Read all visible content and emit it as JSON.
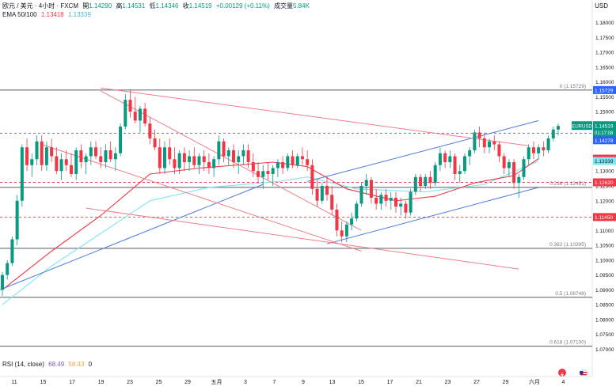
{
  "header": {
    "symbol_line": "欧元 / 美元 · 4小时 · FXCM",
    "ohlc": [
      {
        "label": "開",
        "value": "1.14290"
      },
      {
        "label": "高",
        "value": "1.14531"
      },
      {
        "label": "低",
        "value": "1.14346"
      },
      {
        "label": "收",
        "value": "1.14519"
      }
    ],
    "change": "+0.00129 (+0.11%)",
    "volume_label": "成交量",
    "volume": "5.84K",
    "ema_label": "EMA 50/100",
    "ema50_value": "1.13418",
    "ema100_value": "1.13339",
    "currency": "USD"
  },
  "rsi": {
    "label": "RSI (14, close)",
    "value1": "68.49",
    "value2": "58.43",
    "value3": "0"
  },
  "colors": {
    "up": "#089981",
    "down": "#f23645",
    "ema50": "#f23645",
    "ema100": "#7ee6f0",
    "channel": "#4d79e0",
    "wedge": "#ef7e8a",
    "fib": "#6a6d78",
    "price_tag_up": "#089981",
    "price_tag_blue": "#2962ff"
  },
  "chart_data": {
    "type": "candlestick",
    "symbol": "EURUSD",
    "interval": "4小时",
    "ylim": [
      1.0645,
      1.1855
    ],
    "y_ticks": [
      "1.18000",
      "1.17500",
      "1.17000",
      "1.16500",
      "1.16000",
      "1.15500",
      "1.15000",
      "1.14500",
      "1.14000",
      "1.13500",
      "1.13000",
      "1.12500",
      "1.12000",
      "1.11500",
      "1.11000",
      "1.10500",
      "1.10000",
      "1.09500",
      "1.09000",
      "1.08500",
      "1.08000",
      "1.07500",
      "1.07000"
    ],
    "x_ticks": [
      "11",
      "15",
      "17",
      "19",
      "23",
      "25",
      "29",
      "五月",
      "3",
      "7",
      "9",
      "13",
      "15",
      "17",
      "21",
      "23",
      "27",
      "29",
      "六月",
      "4"
    ],
    "candles": [
      [
        1.09,
        1.096,
        1.088,
        1.095
      ],
      [
        1.095,
        1.1,
        1.0935,
        1.099
      ],
      [
        1.099,
        1.108,
        1.098,
        1.107
      ],
      [
        1.107,
        1.122,
        1.105,
        1.12
      ],
      [
        1.12,
        1.139,
        1.118,
        1.138
      ],
      [
        1.138,
        1.141,
        1.13,
        1.132
      ],
      [
        1.132,
        1.136,
        1.128,
        1.134
      ],
      [
        1.134,
        1.142,
        1.132,
        1.14
      ],
      [
        1.14,
        1.142,
        1.13,
        1.132
      ],
      [
        1.132,
        1.14,
        1.13,
        1.138
      ],
      [
        1.138,
        1.141,
        1.133,
        1.135
      ],
      [
        1.135,
        1.138,
        1.129,
        1.13
      ],
      [
        1.13,
        1.136,
        1.127,
        1.134
      ],
      [
        1.134,
        1.137,
        1.13,
        1.132
      ],
      [
        1.132,
        1.136,
        1.128,
        1.129
      ],
      [
        1.129,
        1.138,
        1.127,
        1.137
      ],
      [
        1.137,
        1.139,
        1.131,
        1.133
      ],
      [
        1.133,
        1.136,
        1.129,
        1.135
      ],
      [
        1.135,
        1.14,
        1.132,
        1.138
      ],
      [
        1.138,
        1.14,
        1.134,
        1.135
      ],
      [
        1.135,
        1.138,
        1.131,
        1.133
      ],
      [
        1.133,
        1.139,
        1.131,
        1.137
      ],
      [
        1.137,
        1.14,
        1.133,
        1.134
      ],
      [
        1.134,
        1.138,
        1.13,
        1.136
      ],
      [
        1.136,
        1.146,
        1.135,
        1.145
      ],
      [
        1.145,
        1.156,
        1.144,
        1.154
      ],
      [
        1.154,
        1.1575,
        1.148,
        1.15
      ],
      [
        1.15,
        1.155,
        1.146,
        1.147
      ],
      [
        1.147,
        1.152,
        1.143,
        1.151
      ],
      [
        1.151,
        1.153,
        1.145,
        1.146
      ],
      [
        1.146,
        1.148,
        1.139,
        1.141
      ],
      [
        1.141,
        1.144,
        1.137,
        1.138
      ],
      [
        1.138,
        1.141,
        1.129,
        1.131
      ],
      [
        1.131,
        1.14,
        1.129,
        1.138
      ],
      [
        1.138,
        1.141,
        1.132,
        1.134
      ],
      [
        1.134,
        1.138,
        1.129,
        1.131
      ],
      [
        1.131,
        1.137,
        1.129,
        1.136
      ],
      [
        1.136,
        1.138,
        1.13,
        1.133
      ],
      [
        1.133,
        1.137,
        1.13,
        1.135
      ],
      [
        1.135,
        1.138,
        1.131,
        1.132
      ],
      [
        1.132,
        1.136,
        1.129,
        1.135
      ],
      [
        1.135,
        1.137,
        1.13,
        1.133
      ],
      [
        1.133,
        1.136,
        1.129,
        1.131
      ],
      [
        1.131,
        1.135,
        1.128,
        1.134
      ],
      [
        1.134,
        1.142,
        1.132,
        1.14
      ],
      [
        1.14,
        1.141,
        1.133,
        1.135
      ],
      [
        1.135,
        1.138,
        1.132,
        1.137
      ],
      [
        1.137,
        1.139,
        1.131,
        1.133
      ],
      [
        1.133,
        1.137,
        1.129,
        1.135
      ],
      [
        1.135,
        1.139,
        1.132,
        1.137
      ],
      [
        1.137,
        1.139,
        1.131,
        1.133
      ],
      [
        1.133,
        1.136,
        1.128,
        1.13
      ],
      [
        1.13,
        1.133,
        1.126,
        1.128
      ],
      [
        1.128,
        1.132,
        1.124,
        1.13
      ],
      [
        1.13,
        1.133,
        1.127,
        1.129
      ],
      [
        1.129,
        1.132,
        1.125,
        1.131
      ],
      [
        1.131,
        1.134,
        1.128,
        1.133
      ],
      [
        1.133,
        1.135,
        1.129,
        1.131
      ],
      [
        1.131,
        1.136,
        1.13,
        1.135
      ],
      [
        1.135,
        1.137,
        1.131,
        1.132
      ],
      [
        1.132,
        1.136,
        1.131,
        1.135
      ],
      [
        1.135,
        1.138,
        1.132,
        1.134
      ],
      [
        1.134,
        1.137,
        1.13,
        1.132
      ],
      [
        1.132,
        1.134,
        1.122,
        1.124
      ],
      [
        1.124,
        1.127,
        1.118,
        1.12
      ],
      [
        1.12,
        1.126,
        1.119,
        1.125
      ],
      [
        1.125,
        1.128,
        1.12,
        1.122
      ],
      [
        1.122,
        1.125,
        1.115,
        1.117
      ],
      [
        1.117,
        1.119,
        1.108,
        1.11
      ],
      [
        1.11,
        1.113,
        1.106,
        1.108
      ],
      [
        1.108,
        1.113,
        1.106,
        1.112
      ],
      [
        1.112,
        1.116,
        1.11,
        1.114
      ],
      [
        1.114,
        1.12,
        1.113,
        1.119
      ],
      [
        1.119,
        1.126,
        1.118,
        1.125
      ],
      [
        1.125,
        1.129,
        1.122,
        1.127
      ],
      [
        1.127,
        1.128,
        1.119,
        1.121
      ],
      [
        1.121,
        1.124,
        1.117,
        1.119
      ],
      [
        1.119,
        1.123,
        1.117,
        1.122
      ],
      [
        1.122,
        1.124,
        1.118,
        1.12
      ],
      [
        1.12,
        1.123,
        1.117,
        1.121
      ],
      [
        1.121,
        1.123,
        1.116,
        1.118
      ],
      [
        1.118,
        1.121,
        1.115,
        1.119
      ],
      [
        1.119,
        1.12,
        1.114,
        1.116
      ],
      [
        1.116,
        1.124,
        1.115,
        1.123
      ],
      [
        1.123,
        1.129,
        1.122,
        1.128
      ],
      [
        1.128,
        1.129,
        1.123,
        1.125
      ],
      [
        1.125,
        1.129,
        1.124,
        1.128
      ],
      [
        1.128,
        1.13,
        1.124,
        1.126
      ],
      [
        1.126,
        1.133,
        1.125,
        1.132
      ],
      [
        1.132,
        1.138,
        1.13,
        1.136
      ],
      [
        1.136,
        1.137,
        1.131,
        1.133
      ],
      [
        1.133,
        1.137,
        1.131,
        1.135
      ],
      [
        1.135,
        1.136,
        1.127,
        1.129
      ],
      [
        1.129,
        1.132,
        1.126,
        1.13
      ],
      [
        1.13,
        1.136,
        1.129,
        1.135
      ],
      [
        1.135,
        1.138,
        1.132,
        1.137
      ],
      [
        1.137,
        1.144,
        1.136,
        1.143
      ],
      [
        1.143,
        1.145,
        1.138,
        1.141
      ],
      [
        1.141,
        1.143,
        1.136,
        1.138
      ],
      [
        1.138,
        1.141,
        1.136,
        1.14
      ],
      [
        1.14,
        1.142,
        1.137,
        1.139
      ],
      [
        1.139,
        1.14,
        1.133,
        1.135
      ],
      [
        1.135,
        1.136,
        1.129,
        1.131
      ],
      [
        1.131,
        1.134,
        1.128,
        1.133
      ],
      [
        1.133,
        1.134,
        1.124,
        1.126
      ],
      [
        1.126,
        1.129,
        1.121,
        1.128
      ],
      [
        1.128,
        1.135,
        1.127,
        1.134
      ],
      [
        1.134,
        1.139,
        1.132,
        1.138
      ],
      [
        1.138,
        1.14,
        1.134,
        1.136
      ],
      [
        1.136,
        1.139,
        1.134,
        1.138
      ],
      [
        1.138,
        1.14,
        1.135,
        1.137
      ],
      [
        1.137,
        1.142,
        1.136,
        1.141
      ],
      [
        1.141,
        1.145,
        1.14,
        1.144
      ],
      [
        1.144,
        1.146,
        1.142,
        1.1452
      ]
    ],
    "ema50": [
      [
        0,
        1.09
      ],
      [
        10,
        1.103
      ],
      [
        20,
        1.115
      ],
      [
        30,
        1.129
      ],
      [
        40,
        1.131
      ],
      [
        55,
        1.133
      ],
      [
        62,
        1.1315
      ],
      [
        70,
        1.124
      ],
      [
        80,
        1.12
      ],
      [
        88,
        1.1215
      ],
      [
        96,
        1.126
      ],
      [
        104,
        1.1285
      ],
      [
        109,
        1.1342
      ]
    ],
    "ema100": [
      [
        0,
        1.085
      ],
      [
        10,
        1.098
      ],
      [
        20,
        1.109
      ],
      [
        30,
        1.12
      ],
      [
        42,
        1.1245
      ],
      [
        56,
        1.1265
      ],
      [
        62,
        1.128
      ],
      [
        72,
        1.124
      ],
      [
        86,
        1.123
      ],
      [
        98,
        1.1255
      ],
      [
        109,
        1.1334
      ]
    ],
    "channel_lines": [
      [
        [
          -2,
          1.089
        ],
        [
          53,
          1.1255
        ]
      ],
      [
        [
          62,
          1.1265
        ],
        [
          109,
          1.147
        ]
      ],
      [
        [
          66,
          1.1055
        ],
        [
          109,
          1.1245
        ]
      ]
    ],
    "wedge_lines": [
      [
        [
          20,
          1.158
        ],
        [
          107,
          1.1385
        ]
      ],
      [
        [
          20,
          1.157
        ],
        [
          73,
          1.11
        ]
      ],
      [
        [
          8,
          1.139
        ],
        [
          73,
          1.103
        ]
      ],
      [
        [
          17,
          1.1175
        ],
        [
          105,
          1.097
        ]
      ]
    ],
    "support_resistance": [
      {
        "label": "0 (1.15729)",
        "value": 1.15729
      },
      {
        "label": "0.236 (1.12451)",
        "value": 1.12451
      },
      {
        "label": "0.382 (1.10395)",
        "value": 1.10395
      },
      {
        "label": "0.5 (1.08748)",
        "value": 1.08748
      },
      {
        "label": "0.618 (1.07100)",
        "value": 1.071
      }
    ],
    "dashed_levels": [
      1.14278,
      1.1262,
      1.1145
    ],
    "price_tags": [
      {
        "label": "EURUSD",
        "value": "1.14519",
        "sub": "01:17:08",
        "y": 1.14519,
        "kind": "up"
      },
      {
        "label": "",
        "value": "1.14278",
        "y": 1.14278,
        "kind": "blue"
      },
      {
        "label": "",
        "value": "1.13418",
        "y": 1.13418,
        "kind": "red"
      },
      {
        "label": "",
        "value": "1.13339",
        "y": 1.13339,
        "kind": "cyan"
      },
      {
        "label": "",
        "value": "1.12620",
        "y": 1.1262,
        "kind": "red"
      },
      {
        "label": "",
        "value": "1.11450",
        "y": 1.1145,
        "kind": "red"
      },
      {
        "label": "",
        "value": "1.15729",
        "y": 1.15729,
        "kind": "blue"
      }
    ]
  }
}
